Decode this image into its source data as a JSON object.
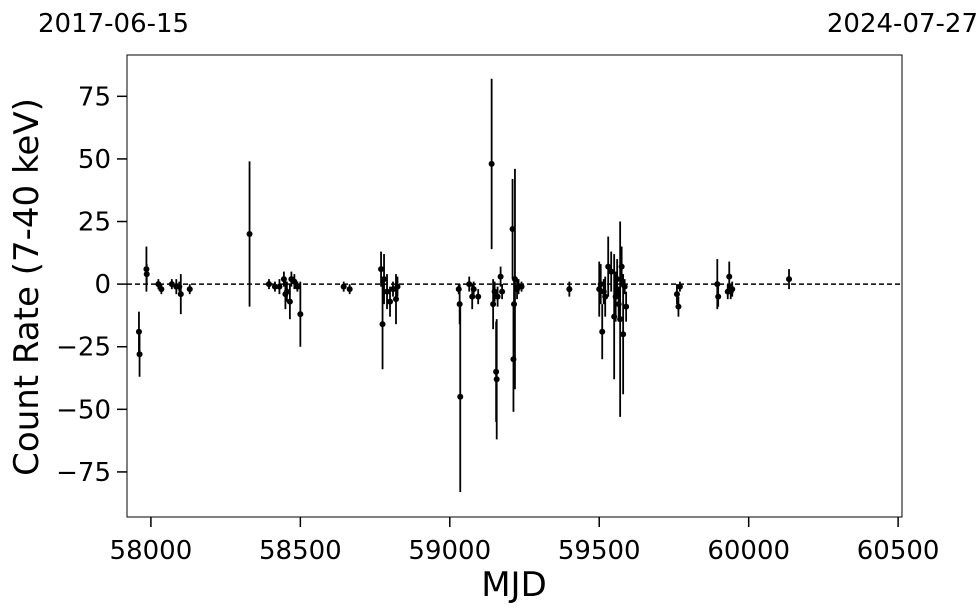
{
  "chart_data": {
    "type": "errorbar_scatter",
    "top_labels": [
      "2017-06-15",
      "2024-07-27"
    ],
    "xlabel": "MJD",
    "ylabel": "Count Rate (7-40 keV)",
    "xlim": [
      57920,
      60513
    ],
    "ylim": [
      -93,
      91.5
    ],
    "xticks": [
      58000,
      58500,
      59000,
      59500,
      60000,
      60500
    ],
    "yticks": [
      {
        "value": -75,
        "label": "−75"
      },
      {
        "value": -50,
        "label": "−50"
      },
      {
        "value": -25,
        "label": "−25"
      },
      0,
      25,
      50,
      75
    ],
    "hline": 0,
    "color": "#000000",
    "x": [
      57960,
      57962,
      57985,
      57986,
      58025,
      58035,
      58070,
      58085,
      58095,
      58100,
      58130,
      58330,
      58395,
      58415,
      58430,
      58445,
      58450,
      58455,
      58465,
      58470,
      58480,
      58490,
      58500,
      58645,
      58665,
      58770,
      58775,
      58780,
      58790,
      58800,
      58810,
      58820,
      58825,
      59030,
      59033,
      59035,
      59065,
      59075,
      59080,
      59095,
      59140,
      59145,
      59150,
      59155,
      59157,
      59160,
      59170,
      59175,
      59210,
      59213,
      59215,
      59218,
      59225,
      59230,
      59240,
      59400,
      59500,
      59505,
      59510,
      59515,
      59520,
      59530,
      59540,
      59550,
      59555,
      59560,
      59565,
      59570,
      59575,
      59580,
      59585,
      59590,
      59760,
      59765,
      59770,
      59895,
      59898,
      59930,
      59935,
      59940,
      59945,
      60135
    ],
    "values": [
      -19,
      -28,
      6,
      4,
      0,
      -2,
      0,
      -1,
      -1,
      -4,
      -2,
      20,
      0,
      -1,
      -1,
      2,
      -4,
      -3,
      -7,
      2,
      1,
      -1,
      -12,
      -1,
      -2,
      6,
      -16,
      2,
      -3,
      -7,
      -2,
      -6,
      -1,
      -2,
      -8,
      -45,
      0,
      -5,
      -2,
      -5,
      48,
      -8,
      -3,
      -35,
      -38,
      -5,
      3,
      -3,
      22,
      -30,
      -8,
      2,
      -2,
      -1,
      -1,
      -2,
      -2,
      0,
      -19,
      -3,
      -5,
      7,
      5,
      -13,
      -5,
      2,
      -8,
      -14,
      7,
      -20,
      -1,
      -9,
      -4,
      -9,
      -1,
      0,
      -5,
      -3,
      3,
      -3,
      -2,
      2
    ],
    "errors": [
      8,
      9,
      9,
      4,
      2,
      2,
      2,
      3,
      2,
      8,
      2,
      29,
      2,
      2,
      3,
      3,
      6,
      4,
      7,
      3,
      3,
      2,
      13,
      2,
      2,
      7,
      18,
      10,
      7,
      6,
      3,
      10,
      4,
      2,
      8,
      38,
      3,
      5,
      3,
      3,
      34,
      10,
      4,
      20,
      24,
      4,
      4,
      3,
      20,
      21,
      10,
      44,
      4,
      3,
      2,
      3,
      11,
      8,
      11,
      5,
      8,
      12,
      8,
      25,
      10,
      8,
      7,
      39,
      8,
      24,
      3,
      6,
      4,
      4,
      2,
      10,
      4,
      3,
      6,
      3,
      3,
      4
    ]
  }
}
